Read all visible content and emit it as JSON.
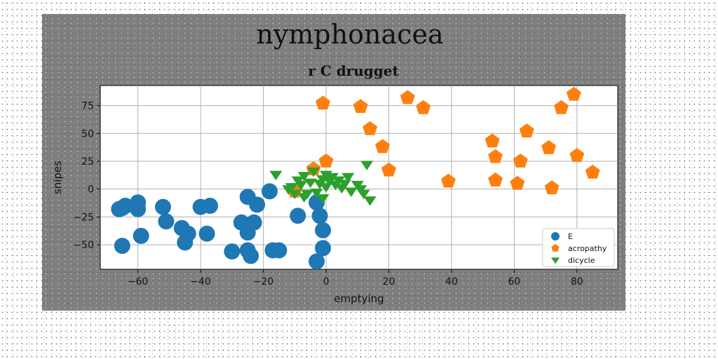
{
  "chart_data": {
    "type": "scatter",
    "suptitle": "nymphonacea",
    "title": "r C drugget",
    "xlabel": "emptying",
    "ylabel": "snipes",
    "xlim": [
      -72,
      93
    ],
    "ylim": [
      -72,
      93
    ],
    "xticks": [
      -60,
      -40,
      -20,
      0,
      20,
      40,
      60,
      80
    ],
    "yticks": [
      -50,
      -25,
      0,
      25,
      50,
      75
    ],
    "grid": true,
    "legend_position": "lower-right",
    "series": [
      {
        "name": "E",
        "marker": "circle",
        "color": "#1f77b4",
        "points": [
          [
            -65,
            -17
          ],
          [
            -66,
            -18
          ],
          [
            -64,
            -15
          ],
          [
            -60,
            -12
          ],
          [
            -60,
            -18
          ],
          [
            -59,
            -42
          ],
          [
            -65,
            -51
          ],
          [
            -52,
            -16
          ],
          [
            -51,
            -29
          ],
          [
            -46,
            -35
          ],
          [
            -44,
            -40
          ],
          [
            -45,
            -48
          ],
          [
            -40,
            -16
          ],
          [
            -37,
            -15
          ],
          [
            -38,
            -40
          ],
          [
            -30,
            -56
          ],
          [
            -25,
            -55
          ],
          [
            -24,
            -60
          ],
          [
            -25,
            -7
          ],
          [
            -22,
            -14
          ],
          [
            -18,
            -2
          ],
          [
            -27,
            -30
          ],
          [
            -23,
            -30
          ],
          [
            -25,
            -39
          ],
          [
            -17,
            -55
          ],
          [
            -15,
            -55
          ],
          [
            -9,
            -24
          ],
          [
            -3,
            -12
          ],
          [
            -2,
            -24
          ],
          [
            -1,
            -37
          ],
          [
            -1,
            -53
          ],
          [
            -3,
            -65
          ]
        ]
      },
      {
        "name": "acropathy",
        "marker": "pentagon",
        "color": "#ff7f0e",
        "points": [
          [
            -1,
            77
          ],
          [
            11,
            74
          ],
          [
            26,
            82
          ],
          [
            31,
            73
          ],
          [
            14,
            54
          ],
          [
            18,
            38
          ],
          [
            20,
            17
          ],
          [
            0,
            25
          ],
          [
            -4,
            18
          ],
          [
            -10,
            -2
          ],
          [
            39,
            7
          ],
          [
            53,
            43
          ],
          [
            54,
            29
          ],
          [
            54,
            8
          ],
          [
            61,
            5
          ],
          [
            62,
            25
          ],
          [
            64,
            52
          ],
          [
            71,
            37
          ],
          [
            72,
            1
          ],
          [
            75,
            73
          ],
          [
            79,
            85
          ],
          [
            80,
            30
          ],
          [
            85,
            15
          ]
        ]
      },
      {
        "name": "dicycle",
        "marker": "triangle-down",
        "color": "#2ca02c",
        "points": [
          [
            -16,
            13
          ],
          [
            -11,
            2
          ],
          [
            -9,
            8
          ],
          [
            -8,
            4
          ],
          [
            -7,
            12
          ],
          [
            -6,
            -4
          ],
          [
            -5,
            6
          ],
          [
            -4,
            16
          ],
          [
            -3,
            -3
          ],
          [
            -2,
            5
          ],
          [
            -1,
            9
          ],
          [
            0,
            2
          ],
          [
            0,
            13
          ],
          [
            1,
            8
          ],
          [
            2,
            11
          ],
          [
            3,
            4
          ],
          [
            4,
            8
          ],
          [
            5,
            1
          ],
          [
            6,
            5
          ],
          [
            7,
            11
          ],
          [
            8,
            -2
          ],
          [
            10,
            4
          ],
          [
            11,
            0
          ],
          [
            12,
            -4
          ],
          [
            13,
            22
          ],
          [
            14,
            -10
          ],
          [
            -10,
            -4
          ],
          [
            -12,
            0
          ],
          [
            -7,
            -7
          ],
          [
            -1,
            -8
          ]
        ]
      }
    ]
  }
}
